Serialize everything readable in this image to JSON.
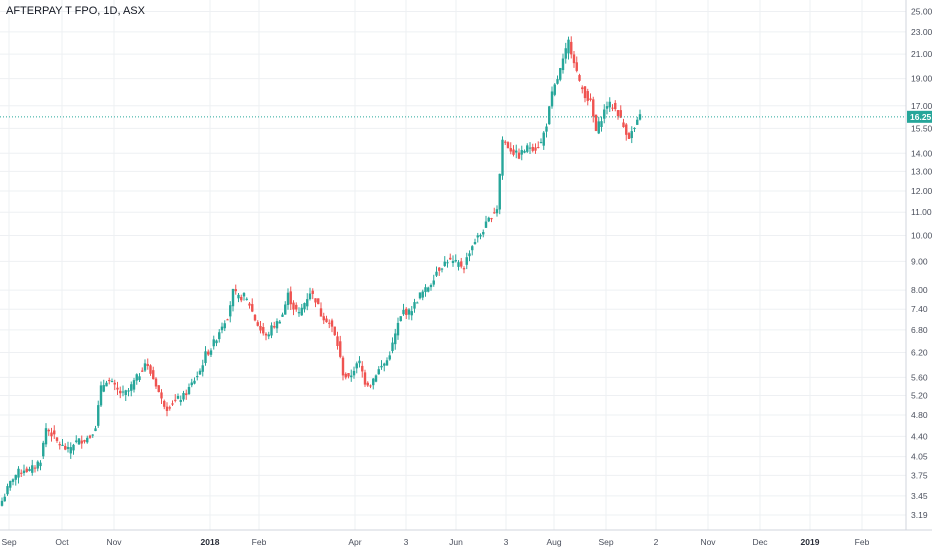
{
  "chart_data": {
    "type": "candlestick",
    "title": "AFTERPAY T FPO, 1D, ASX",
    "y_scale": "log",
    "ylim": [
      3.0,
      26.2
    ],
    "y_ticks": [
      "25.00",
      "23.00",
      "21.00",
      "19.00",
      "17.00",
      "15.50",
      "14.00",
      "13.00",
      "12.00",
      "11.00",
      "10.00",
      "9.00",
      "8.00",
      "7.40",
      "6.80",
      "6.20",
      "5.60",
      "5.20",
      "4.80",
      "4.40",
      "4.05",
      "3.75",
      "3.45",
      "3.19"
    ],
    "x_ticks": [
      {
        "label": "Sep",
        "bold": false
      },
      {
        "label": "Oct",
        "bold": false
      },
      {
        "label": "Nov",
        "bold": false
      },
      {
        "label": "2018",
        "bold": true
      },
      {
        "label": "Feb",
        "bold": false
      },
      {
        "label": "Apr",
        "bold": false
      },
      {
        "label": "3",
        "bold": false
      },
      {
        "label": "Jun",
        "bold": false
      },
      {
        "label": "3",
        "bold": false
      },
      {
        "label": "Aug",
        "bold": false
      },
      {
        "label": "Sep",
        "bold": false
      },
      {
        "label": "2",
        "bold": false
      },
      {
        "label": "Nov",
        "bold": false
      },
      {
        "label": "Dec",
        "bold": false
      },
      {
        "label": "2019",
        "bold": true
      },
      {
        "label": "Feb",
        "bold": false
      }
    ],
    "last_price": "16.25",
    "grid": true,
    "colors": {
      "up": "#26a69a",
      "down": "#ef5350",
      "price_line": "#26a69a",
      "grid": "#eef0f3"
    },
    "price_path": [
      3.38,
      3.55,
      3.72,
      3.8,
      3.85,
      3.82,
      3.9,
      4.0,
      4.55,
      4.45,
      4.3,
      4.22,
      4.15,
      4.28,
      4.32,
      4.35,
      4.4,
      4.6,
      5.35,
      5.55,
      5.45,
      5.3,
      5.22,
      5.3,
      5.5,
      5.68,
      5.95,
      5.7,
      5.45,
      5.1,
      4.95,
      5.05,
      5.12,
      5.18,
      5.35,
      5.55,
      5.75,
      6.15,
      6.3,
      6.6,
      6.95,
      7.2,
      7.95,
      7.75,
      7.8,
      7.55,
      7.1,
      6.8,
      6.6,
      6.85,
      7.0,
      7.25,
      7.85,
      7.45,
      7.25,
      7.6,
      7.95,
      7.7,
      7.25,
      7.1,
      6.85,
      6.4,
      5.7,
      5.55,
      5.8,
      5.95,
      5.5,
      5.45,
      5.7,
      5.85,
      6.0,
      6.4,
      6.95,
      7.35,
      7.3,
      7.55,
      7.85,
      8.0,
      8.25,
      8.65,
      8.85,
      9.05,
      8.95,
      8.9,
      8.8,
      9.4,
      9.8,
      10.05,
      10.45,
      10.85,
      11.2,
      14.8,
      14.4,
      14.05,
      13.85,
      14.2,
      14.4,
      14.3,
      14.6,
      15.8,
      17.8,
      19.0,
      20.4,
      22.1,
      20.5,
      18.6,
      17.8,
      17.2,
      15.3,
      16.2,
      17.1,
      17.0,
      16.5,
      15.6,
      15.0,
      15.5,
      16.25
    ]
  }
}
